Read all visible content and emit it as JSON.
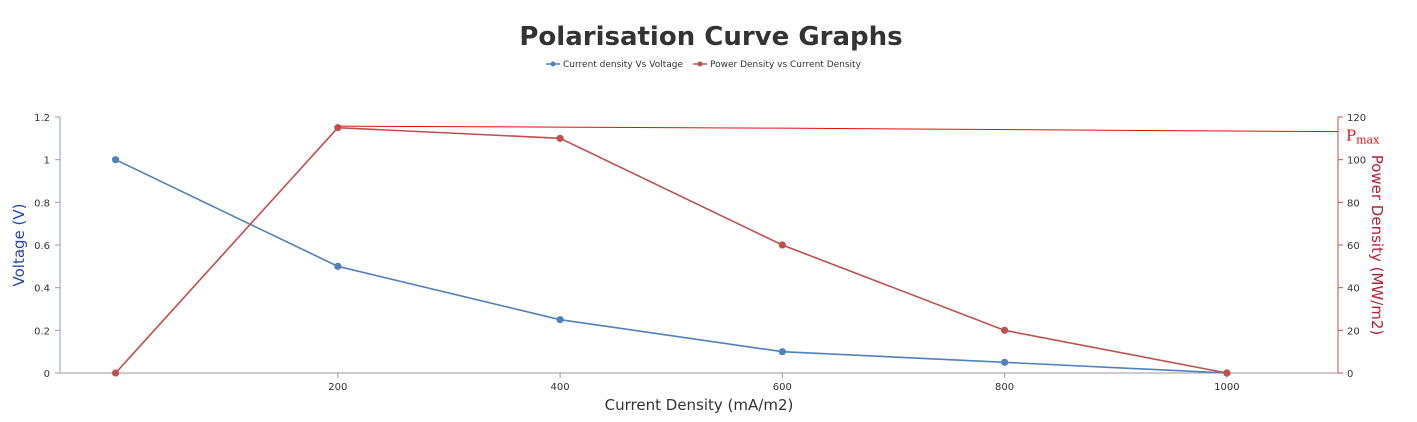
{
  "chart_data": {
    "type": "line",
    "title": "Polarisation Curve Graphs",
    "xlabel": "Current Density (mA/m2)",
    "ylabel": "Voltage (V)",
    "y2label": "Power Density (MW/m2)",
    "xlim": [
      -50,
      1100
    ],
    "ylim": [
      0,
      1.2
    ],
    "y2lim": [
      0,
      120
    ],
    "x_ticks": [
      200,
      400,
      600,
      800,
      1000
    ],
    "y_ticks": [
      0,
      0.2,
      0.4,
      0.6,
      0.8,
      1,
      1.2
    ],
    "y2_ticks": [
      0,
      20,
      40,
      60,
      80,
      100,
      120
    ],
    "legend_position": "top-center",
    "series": [
      {
        "name": "Current density Vs  Voltage",
        "axis": "left",
        "color": "#4f81bd",
        "x": [
          0,
          200,
          400,
          600,
          800,
          1000
        ],
        "values": [
          1,
          0.5,
          0.25,
          0.1,
          0.05,
          0
        ]
      },
      {
        "name": "Power Density vs Current Density",
        "axis": "right",
        "color": "#c0504d",
        "x": [
          0,
          200,
          400,
          600,
          800,
          1000
        ],
        "values": [
          0,
          115,
          110,
          60,
          20,
          0
        ]
      }
    ],
    "annotations": [
      {
        "text": "Pmax",
        "base": "P",
        "subscript": "max",
        "color": "#e01010",
        "value": 115,
        "axis": "right"
      }
    ]
  }
}
